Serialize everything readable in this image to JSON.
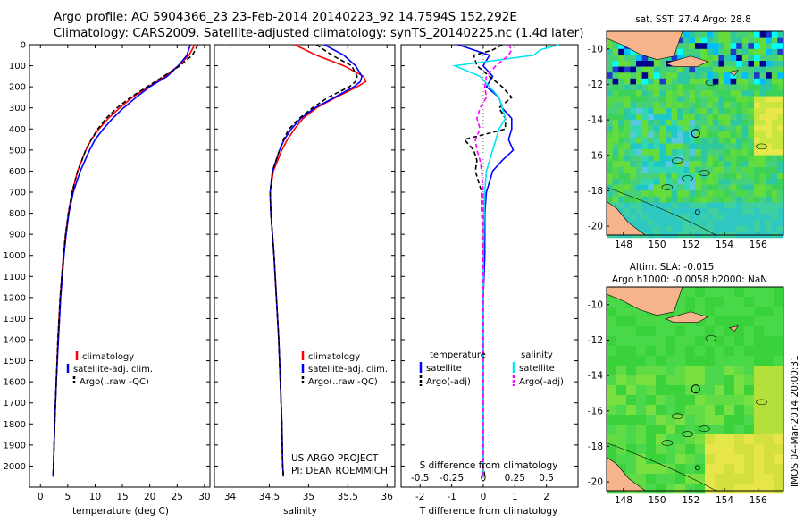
{
  "header": {
    "line1": "Argo profile: AO 5904366_23 23-Feb-2014 20140223_92 14.7594S 152.292E",
    "line2": "Climatology: CARS2009. Satellite-adjusted climatology: synTS_20140225.nc (1.4d later)"
  },
  "colors": {
    "climatology": "#ff0000",
    "satellite": "#0000ff",
    "argo": "#000000",
    "sat_salinity": "#00e5ee",
    "argo_salinity": "#ff00ff"
  },
  "chart_data": [
    {
      "type": "line",
      "id": "temperature",
      "xlabel": "temperature (deg C)",
      "ylabel": "",
      "xlim": [
        -2,
        31
      ],
      "ylim": [
        2100,
        0
      ],
      "xticks": [
        0,
        5,
        10,
        15,
        20,
        25,
        30
      ],
      "yticks": [
        0,
        100,
        200,
        300,
        400,
        500,
        600,
        700,
        800,
        900,
        1000,
        1100,
        1200,
        1300,
        1400,
        1500,
        1600,
        1700,
        1800,
        1900,
        2000
      ],
      "depth": [
        0,
        50,
        100,
        150,
        200,
        250,
        300,
        350,
        400,
        450,
        500,
        600,
        700,
        800,
        900,
        1000,
        1200,
        1400,
        1600,
        1800,
        2000,
        2050
      ],
      "series": [
        {
          "name": "climatology",
          "color": "#ff0000",
          "dash": false,
          "x": [
            28.2,
            27.2,
            25.2,
            22.8,
            19.8,
            16.8,
            14.5,
            12.4,
            10.7,
            9.3,
            8.3,
            6.8,
            5.8,
            5.1,
            4.6,
            4.2,
            3.6,
            3.2,
            2.9,
            2.6,
            2.4,
            2.3
          ]
        },
        {
          "name": "satellite-adj. clim.",
          "color": "#0000ff",
          "dash": false,
          "x": [
            27.4,
            26.8,
            25.2,
            23.2,
            20.0,
            17.5,
            15.2,
            13.2,
            11.5,
            10.0,
            9.0,
            7.3,
            6.0,
            5.2,
            4.7,
            4.3,
            3.7,
            3.3,
            2.9,
            2.6,
            2.4,
            2.3
          ]
        },
        {
          "name": "Argo(..raw -QC)",
          "color": "#000000",
          "dash": true,
          "x": [
            28.8,
            27.8,
            25.5,
            22.5,
            19.5,
            16.5,
            14.0,
            12.0,
            10.5,
            9.3,
            8.3,
            6.8,
            5.8,
            5.1,
            4.6,
            4.2,
            3.6,
            3.2,
            2.9,
            2.6,
            2.4,
            2.35
          ]
        }
      ],
      "legend": [
        "climatology",
        "satellite-adj. clim.",
        "Argo(..raw -QC)"
      ]
    },
    {
      "type": "line",
      "id": "salinity",
      "xlabel": "salinity",
      "xlim": [
        33.8,
        36.1
      ],
      "ylim": [
        2100,
        0
      ],
      "xticks": [
        34,
        34.5,
        35,
        35.5,
        36
      ],
      "depth": [
        0,
        50,
        100,
        150,
        175,
        200,
        250,
        300,
        350,
        400,
        450,
        500,
        600,
        700,
        800,
        900,
        1000,
        1200,
        1400,
        1600,
        1800,
        2000,
        2050
      ],
      "series": [
        {
          "name": "climatology",
          "color": "#ff0000",
          "dash": false,
          "x": [
            34.82,
            35.1,
            35.45,
            35.7,
            35.73,
            35.62,
            35.35,
            35.1,
            34.93,
            34.82,
            34.73,
            34.66,
            34.55,
            34.51,
            34.52,
            34.54,
            34.56,
            34.59,
            34.62,
            34.64,
            34.66,
            34.67,
            34.68
          ]
        },
        {
          "name": "satellite-adj. clim.",
          "color": "#0000ff",
          "dash": false,
          "x": [
            35.2,
            35.45,
            35.6,
            35.68,
            35.66,
            35.58,
            35.33,
            35.08,
            34.9,
            34.78,
            34.69,
            34.63,
            34.54,
            34.51,
            34.52,
            34.54,
            34.56,
            34.59,
            34.62,
            34.64,
            34.66,
            34.67,
            34.68
          ]
        },
        {
          "name": "Argo(..raw -QC)",
          "color": "#000000",
          "dash": true,
          "x": [
            35.1,
            35.3,
            35.55,
            35.62,
            35.6,
            35.52,
            35.25,
            35.05,
            34.88,
            34.75,
            34.68,
            34.63,
            34.54,
            34.51,
            34.52,
            34.54,
            34.56,
            34.59,
            34.62,
            34.64,
            34.66,
            34.67,
            34.68
          ]
        }
      ],
      "legend": [
        "climatology",
        "satellite-adj. clim.",
        "Argo(..raw -QC)"
      ],
      "annotation": [
        "US ARGO PROJECT",
        "PI: DEAN ROEMMICH"
      ]
    },
    {
      "type": "line",
      "id": "differences",
      "xlabel": "T difference from climatology",
      "top_label": "S difference from climatology",
      "xlim": [
        -2.6,
        3.0
      ],
      "ylim": [
        2100,
        0
      ],
      "xticks": [
        -2,
        -1,
        0,
        1,
        2
      ],
      "top_ticks_labels": [
        "-0.5",
        "-0.25",
        "0",
        "0.25",
        "0.5"
      ],
      "top_ticks_pos": [
        -2,
        -1,
        0,
        1,
        2
      ],
      "depth": [
        0,
        25,
        50,
        100,
        150,
        200,
        250,
        300,
        350,
        400,
        450,
        500,
        550,
        600,
        700,
        800,
        900,
        1000,
        1200,
        1400,
        1600,
        1800,
        2000,
        2050
      ],
      "series": [
        {
          "name": "temperature satellite",
          "color": "#0000ff",
          "dash": false,
          "x": [
            -0.8,
            -0.3,
            0.2,
            0.0,
            0.3,
            0.1,
            0.5,
            0.6,
            0.9,
            0.9,
            0.8,
            0.95,
            0.6,
            0.3,
            0.1,
            0.05,
            0.05,
            0.05,
            0.0,
            0.0,
            0.0,
            0.0,
            0.0,
            0.0
          ]
        },
        {
          "name": "temperature Argo(-adj)",
          "color": "#000000",
          "dash": true,
          "x": [
            0.6,
            0.3,
            -0.3,
            -0.2,
            0.2,
            0.6,
            0.9,
            0.5,
            0.7,
            0.7,
            -0.6,
            -0.3,
            -0.2,
            -0.25,
            -0.05,
            -0.05,
            0.0,
            0.0,
            0.0,
            0.0,
            0.0,
            0.0,
            0.0,
            0.05
          ]
        },
        {
          "name": "salinity satellite",
          "color": "#00e5ee",
          "dash": false,
          "x": [
            2.4,
            1.8,
            1.6,
            -0.9,
            -0.1,
            0.2,
            0.5,
            0.6,
            0.7,
            0.5,
            0.4,
            0.3,
            0.2,
            0.1,
            0.05,
            0.03,
            0.02,
            0.01,
            0.0,
            0.0,
            0.0,
            0.0,
            0.0,
            0.0
          ]
        },
        {
          "name": "salinity Argo(-adj)",
          "color": "#ff00ff",
          "dash": true,
          "x": [
            0.8,
            0.9,
            0.8,
            0.4,
            0.1,
            0.05,
            0.1,
            -0.1,
            -0.2,
            -0.1,
            -0.25,
            -0.2,
            -0.1,
            -0.05,
            0.0,
            0.0,
            0.0,
            0.0,
            0.0,
            0.0,
            0.0,
            0.0,
            0.0,
            0.0
          ]
        }
      ],
      "legend_headers": [
        "temperature",
        "salinity"
      ],
      "legend": [
        "satellite",
        "Argo(-adj)",
        "satellite",
        "Argo(-adj)"
      ]
    },
    {
      "type": "heatmap",
      "id": "sst_map",
      "title": "sat. SST: 27.4  Argo: 28.8",
      "xticks": [
        148,
        150,
        152,
        154,
        156
      ],
      "yticks": [
        -10,
        -12,
        -14,
        -16,
        -18,
        -20
      ],
      "xlim": [
        147,
        157.5
      ],
      "ylim": [
        -20.5,
        -9
      ],
      "marker": [
        152.292,
        -14.7594
      ]
    },
    {
      "type": "heatmap",
      "id": "sla_map",
      "title_line1": "Altim. SLA: -0.015",
      "title_line2": "Argo h1000: -0.0058 h2000: NaN",
      "xticks": [
        148,
        150,
        152,
        154,
        156
      ],
      "yticks": [
        -10,
        -12,
        -14,
        -16,
        -18,
        -20
      ],
      "xlim": [
        147,
        157.5
      ],
      "ylim": [
        -20.5,
        -9
      ],
      "marker": [
        152.292,
        -14.7594
      ]
    }
  ],
  "footer": {
    "credit": "IMOS 04-Mar-2014 20:00:31"
  }
}
